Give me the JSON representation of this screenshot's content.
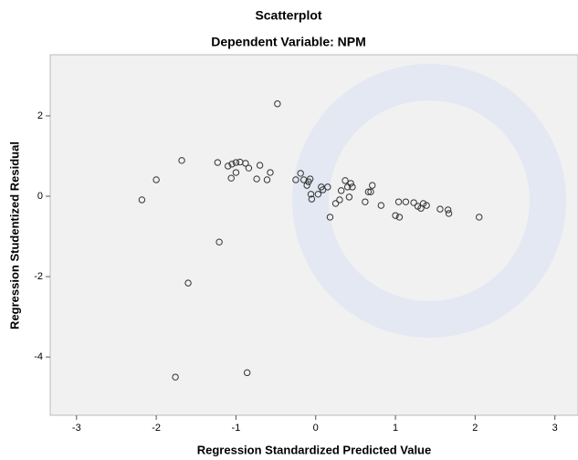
{
  "chart_data": {
    "type": "scatter",
    "title": "Scatterplot",
    "subtitle": "Dependent Variable: NPM",
    "x_label": "Regression Standardized Predicted Value",
    "y_label": "Regression Studentized Residual",
    "color": "#333333",
    "x": [
      -0.48,
      -2.18,
      -2.0,
      -1.68,
      -1.23,
      -1.1,
      -1.05,
      -1.0,
      -0.95,
      -0.88,
      -1.06,
      -1.0,
      -0.84,
      -0.74,
      -0.7,
      -0.61,
      -0.57,
      -0.25,
      -0.19,
      -0.15,
      -0.11,
      -0.09,
      -0.07,
      -0.06,
      -0.05,
      0.03,
      0.07,
      0.09,
      0.15,
      0.18,
      0.25,
      0.3,
      0.32,
      0.37,
      0.4,
      0.42,
      0.44,
      0.46,
      0.62,
      0.66,
      0.69,
      0.71,
      0.82,
      1.0,
      1.04,
      1.05,
      1.13,
      1.23,
      1.28,
      1.32,
      1.35,
      1.39,
      1.56,
      1.66,
      1.67,
      2.05,
      -1.21,
      -1.6,
      -1.76,
      -0.86
    ],
    "values": [
      2.3,
      -0.09,
      0.41,
      0.89,
      0.84,
      0.75,
      0.8,
      0.84,
      0.85,
      0.82,
      0.45,
      0.59,
      0.7,
      0.43,
      0.77,
      0.41,
      0.59,
      0.41,
      0.57,
      0.41,
      0.27,
      0.36,
      0.43,
      0.05,
      -0.07,
      0.05,
      0.23,
      0.16,
      0.23,
      -0.52,
      -0.18,
      -0.09,
      0.14,
      0.39,
      0.23,
      -0.02,
      0.32,
      0.23,
      -0.14,
      0.11,
      0.11,
      0.27,
      -0.23,
      -0.48,
      -0.14,
      -0.52,
      -0.14,
      -0.16,
      -0.25,
      -0.3,
      -0.18,
      -0.23,
      -0.32,
      -0.34,
      -0.43,
      -0.52,
      -1.14,
      -2.16,
      -4.5,
      -4.39
    ],
    "xlim": [
      -3.33,
      3.29
    ],
    "ylim": [
      -5.45,
      3.52
    ],
    "xticks": [
      -3,
      -2,
      -1,
      0,
      1,
      2,
      3
    ],
    "yticks": [
      -4,
      -2,
      0,
      2
    ]
  }
}
